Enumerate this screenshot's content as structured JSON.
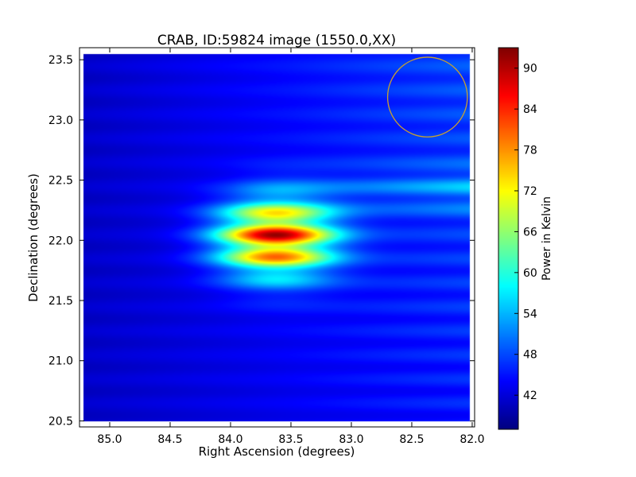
{
  "chart_data": {
    "type": "heatmap",
    "title": "CRAB, ID:59824 image (1550.0,XX)",
    "xlabel": "Right Ascension (degrees)",
    "ylabel": "Declination (degrees)",
    "x_inverted": true,
    "xlim": [
      85.25,
      81.98
    ],
    "ylim": [
      20.45,
      23.6
    ],
    "xticks": [
      85.0,
      84.5,
      84.0,
      83.5,
      83.0,
      82.5,
      82.0
    ],
    "xtick_labels": [
      "85.0",
      "84.5",
      "84.0",
      "83.5",
      "83.0",
      "82.5",
      "82.0"
    ],
    "yticks": [
      20.5,
      21.0,
      21.5,
      22.0,
      22.5,
      23.0,
      23.5
    ],
    "ytick_labels": [
      "20.5",
      "21.0",
      "21.5",
      "22.0",
      "22.5",
      "23.0",
      "23.5"
    ],
    "colorbar": {
      "label": "Power in Kelvin",
      "min": 37.0,
      "max": 93.0,
      "ticks": [
        42,
        48,
        54,
        60,
        66,
        72,
        78,
        84,
        90
      ],
      "tick_labels": [
        "42",
        "48",
        "54",
        "60",
        "66",
        "72",
        "78",
        "84",
        "90"
      ],
      "colormap": "jet"
    },
    "image_extent": {
      "ra": [
        85.22,
        82.02
      ],
      "dec": [
        20.5,
        23.55
      ]
    },
    "peak": {
      "ra": 83.63,
      "dec": 22.02,
      "value": 92
    },
    "background_level": 43,
    "circle_marker": {
      "ra": 82.37,
      "dec": 23.19,
      "radius_deg": 0.33,
      "color": "#c8a030"
    },
    "grid": false,
    "legend": "none"
  }
}
